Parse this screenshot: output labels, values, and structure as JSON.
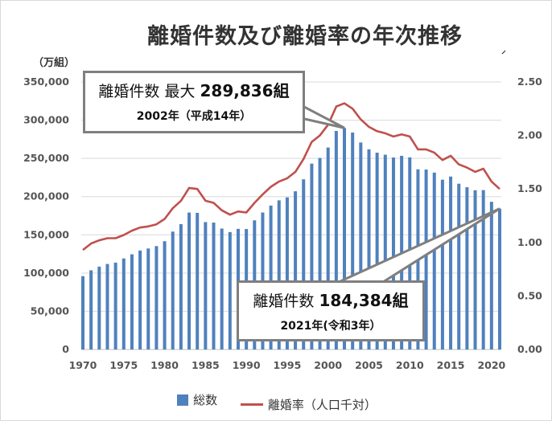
{
  "chart_data": {
    "type": "bar+line",
    "title": "離婚件数及び離婚率の年次推移",
    "y_left_label": "（万組）",
    "y_left_lim": [
      0,
      350000
    ],
    "y_right_lim": [
      0,
      2.5
    ],
    "y_left_ticks": [
      "0",
      "50,000",
      "100,000",
      "150,000",
      "200,000",
      "250,000",
      "300,000",
      "350,000"
    ],
    "y_right_ticks": [
      "0.00",
      "0.50",
      "1.00",
      "1.50",
      "2.00",
      "2.50"
    ],
    "x_ticks": [
      "1970",
      "1975",
      "1980",
      "1985",
      "1990",
      "1995",
      "2000",
      "2005",
      "2010",
      "2015",
      "2020"
    ],
    "x": [
      1970,
      1971,
      1972,
      1973,
      1974,
      1975,
      1976,
      1977,
      1978,
      1979,
      1980,
      1981,
      1982,
      1983,
      1984,
      1985,
      1986,
      1987,
      1988,
      1989,
      1990,
      1991,
      1992,
      1993,
      1994,
      1995,
      1996,
      1997,
      1998,
      1999,
      2000,
      2001,
      2002,
      2003,
      2004,
      2005,
      2006,
      2007,
      2008,
      2009,
      2010,
      2011,
      2012,
      2013,
      2014,
      2015,
      2016,
      2017,
      2018,
      2019,
      2020,
      2021
    ],
    "series": [
      {
        "name": "総数",
        "type": "bar",
        "axis": "left",
        "color": "#4f81bd",
        "values": [
          95937,
          103595,
          108382,
          111877,
          113622,
          119135,
          124512,
          129485,
          132146,
          135250,
          141689,
          154221,
          163980,
          179150,
          178746,
          166640,
          166054,
          158227,
          153600,
          157811,
          157608,
          168969,
          179191,
          188297,
          195106,
          199016,
          206955,
          222635,
          243183,
          250529,
          264246,
          285911,
          289836,
          283854,
          270804,
          261917,
          257475,
          254832,
          251136,
          253353,
          251378,
          235719,
          235406,
          231383,
          222107,
          226238,
          216856,
          212296,
          208333,
          208496,
          193253,
          184384
        ]
      },
      {
        "name": "離婚率（人口千対）",
        "type": "line",
        "axis": "right",
        "color": "#c0504d",
        "values": [
          0.93,
          0.99,
          1.02,
          1.04,
          1.04,
          1.07,
          1.11,
          1.14,
          1.15,
          1.17,
          1.22,
          1.32,
          1.39,
          1.51,
          1.5,
          1.39,
          1.37,
          1.3,
          1.26,
          1.29,
          1.28,
          1.37,
          1.45,
          1.52,
          1.57,
          1.6,
          1.66,
          1.78,
          1.94,
          2.0,
          2.1,
          2.27,
          2.3,
          2.25,
          2.15,
          2.08,
          2.04,
          2.02,
          1.99,
          2.01,
          1.99,
          1.87,
          1.87,
          1.84,
          1.77,
          1.81,
          1.73,
          1.7,
          1.66,
          1.69,
          1.57,
          1.5
        ]
      }
    ],
    "legend": "bottom",
    "grid": true
  },
  "annotations": {
    "max": {
      "label": "離婚件数  最大",
      "value": "289,836組",
      "sub": "2002年（平成14年）"
    },
    "latest": {
      "label": "離婚件数  ",
      "value": "184,384組",
      "sub": "2021年(令和3年）"
    }
  }
}
